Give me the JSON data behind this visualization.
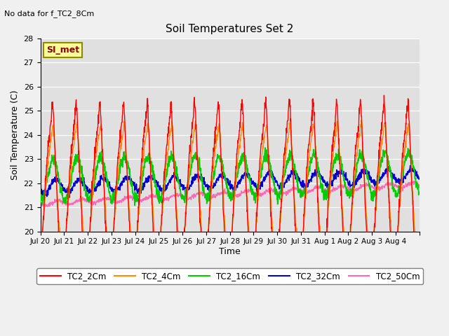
{
  "title": "Soil Temperatures Set 2",
  "subtitle": "No data for f_TC2_8Cm",
  "xlabel": "Time",
  "ylabel": "Soil Temperature (C)",
  "ylim": [
    20.0,
    28.0
  ],
  "yticks": [
    20.0,
    21.0,
    22.0,
    23.0,
    24.0,
    25.0,
    26.0,
    27.0,
    28.0
  ],
  "xtick_labels": [
    "Jul 20",
    "Jul 21",
    "Jul 22",
    "Jul 23",
    "Jul 24",
    "Jul 25",
    "Jul 26",
    "Jul 27",
    "Jul 28",
    "Jul 29",
    "Jul 30",
    "Jul 31",
    "Aug 1",
    "Aug 2",
    "Aug 3",
    "Aug 4",
    ""
  ],
  "annotation_box": "SI_met",
  "bg_color": "#e0e0e0",
  "fig_color": "#f0f0f0",
  "colors": {
    "TC2_2Cm": "#ff0000",
    "TC2_4Cm": "#ff8c00",
    "TC2_16Cm": "#00cc00",
    "TC2_32Cm": "#0000cc",
    "TC2_50Cm": "#ff69b4"
  },
  "legend_labels": [
    "TC2_2Cm",
    "TC2_4Cm",
    "TC2_16Cm",
    "TC2_32Cm",
    "TC2_50Cm"
  ]
}
